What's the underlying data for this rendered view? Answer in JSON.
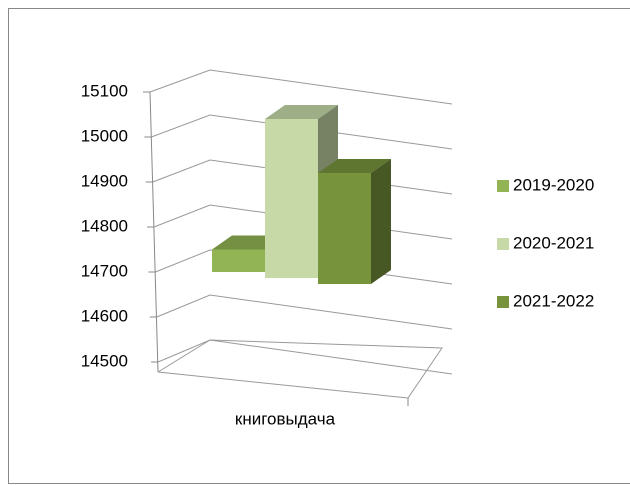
{
  "chart_data": {
    "type": "bar",
    "categories": [
      "книговыдача"
    ],
    "series": [
      {
        "name": "2019-2020",
        "color": "#92b454",
        "values": [
          14750
        ]
      },
      {
        "name": "2020-2021",
        "color": "#c6d9a7",
        "values": [
          15040
        ]
      },
      {
        "name": "2021-2022",
        "color": "#77933c",
        "values": [
          14920
        ]
      }
    ],
    "ylim": [
      14500,
      15100
    ],
    "yticks": [
      14500,
      14600,
      14700,
      14800,
      14900,
      15000,
      15100
    ],
    "grid": true,
    "legend": "right"
  }
}
